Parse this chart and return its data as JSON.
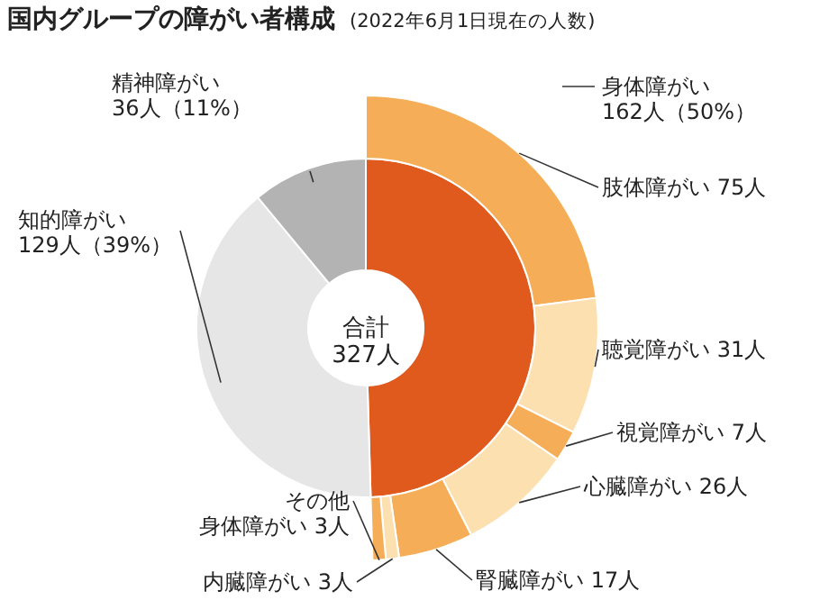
{
  "chart_data": {
    "type": "donut",
    "title": "国内グループの障がい者構成",
    "subtitle": "(2022年6月1日現在の人数)",
    "annotations": [
      "合計\n327人"
    ],
    "categories": [
      "身体障がい",
      "知的障がい",
      "精神障がい",
      "肢体障がい",
      "聴覚障がい",
      "視覚障がい",
      "心臓障がい",
      "腎臓障がい",
      "内臓障がい",
      "その他身体障がい"
    ],
    "series": [
      {
        "values": [
          162,
          129,
          36,
          null,
          null,
          null,
          null,
          null,
          null,
          null
        ],
        "colors": [
          "#e05a1e",
          "#e6e6e6",
          "#b3b3b3",
          null,
          null,
          null,
          null,
          null,
          null,
          null
        ],
        "value_labels": [
          "162人（50%）",
          "129人（39%）",
          "36人（11%）",
          null,
          null,
          null,
          null,
          null,
          null,
          null
        ]
      },
      {
        "values": [
          null,
          null,
          null,
          75,
          31,
          7,
          26,
          17,
          3,
          3
        ],
        "colors": [
          null,
          null,
          null,
          "#f5ae57",
          "#fde0b0",
          "#f5ae57",
          "#fde0b0",
          "#f5ae57",
          "#fde0b0",
          "#f5ae57"
        ],
        "value_labels": [
          null,
          null,
          null,
          "75人",
          "31人",
          "7人",
          "26人",
          "17人",
          "3人",
          "3人"
        ]
      }
    ]
  }
}
